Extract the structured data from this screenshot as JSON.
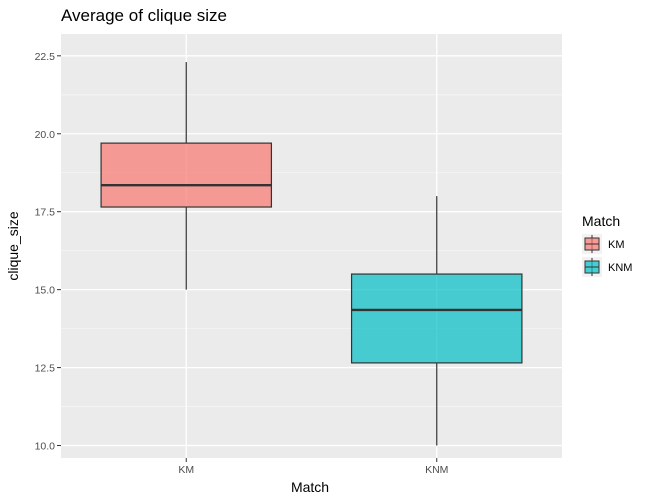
{
  "chart_data": {
    "type": "boxplot",
    "title": "Average of clique size",
    "xlabel": "Match",
    "ylabel": "clique_size",
    "categories": [
      "KM",
      "KNM"
    ],
    "boxes": [
      {
        "category": "KM",
        "whisker_low": 15.0,
        "q1": 17.65,
        "median": 18.35,
        "q3": 19.7,
        "whisker_high": 22.3,
        "color": "#F8766D"
      },
      {
        "category": "KNM",
        "whisker_low": 10.0,
        "q1": 12.65,
        "median": 14.35,
        "q3": 15.5,
        "whisker_high": 18.0,
        "color": "#00BFC4"
      }
    ],
    "ylim": [
      9.6,
      23.2
    ],
    "y_ticks": [
      10.0,
      12.5,
      15.0,
      17.5,
      20.0,
      22.5
    ],
    "y_tick_labels": [
      "10.0",
      "12.5",
      "15.0",
      "17.5",
      "20.0",
      "22.5"
    ],
    "grid": true,
    "legend": {
      "title": "Match",
      "position": "right",
      "entries": [
        {
          "label": "KM",
          "color": "#F8766D"
        },
        {
          "label": "KNM",
          "color": "#00BFC4"
        }
      ]
    },
    "colors": {
      "panel_background": "#EBEBEB",
      "grid_major": "#FFFFFF",
      "box_outline": "#333333",
      "text": "#000000",
      "tick_text": "#4D4D4D"
    }
  }
}
